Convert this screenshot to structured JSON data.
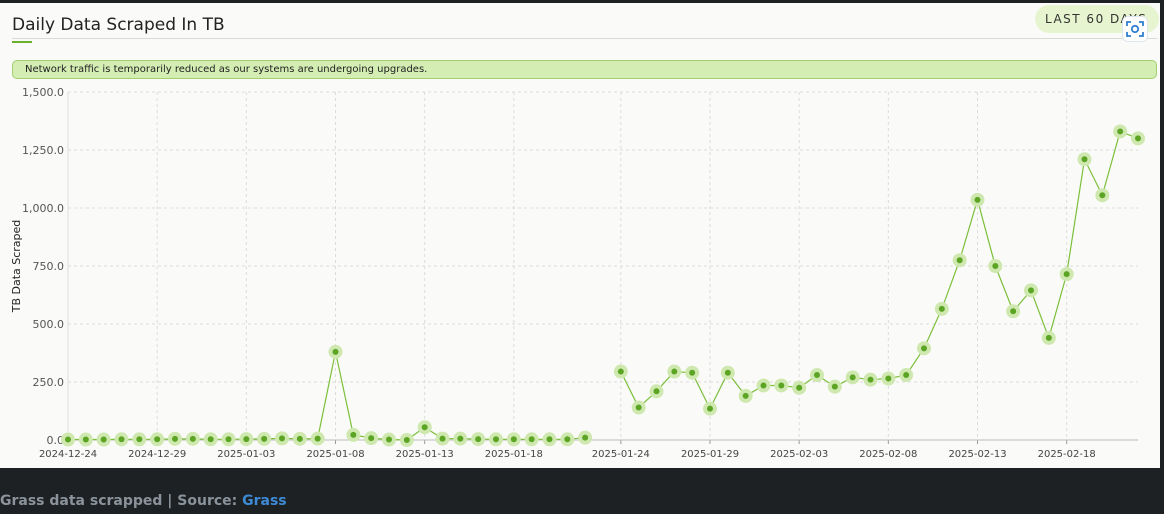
{
  "title": "Daily Data Scraped In TB",
  "range_button": "LAST 60 DAYS",
  "notice": "Network traffic is temporarily reduced as our systems are undergoing upgrades.",
  "caption": {
    "prefix": "Grass data scrapped | Source: ",
    "link": "Grass"
  },
  "colors": {
    "accent": "#6bb02d",
    "line": "#7cbf3a",
    "halo": "#cfe8b0",
    "notice_bg": "#d4edb3"
  },
  "icons": {
    "lens": "scan-lens-icon"
  },
  "chart_data": {
    "type": "line",
    "title": "Daily Data Scraped In TB",
    "xlabel": "",
    "ylabel": "TB Data Scraped",
    "ylim": [
      0,
      1500
    ],
    "yticks": [
      "1,500.0",
      "1,250.0",
      "1,000.0",
      "750.0",
      "500.0",
      "250.0",
      "0.0"
    ],
    "xticks": [
      "2024-12-24",
      "2024-12-29",
      "2025-01-03",
      "2025-01-08",
      "2025-01-13",
      "2025-01-18",
      "2025-01-24",
      "2025-01-29",
      "2025-02-03",
      "2025-02-08",
      "2025-02-13",
      "2025-02-18"
    ],
    "grid": true,
    "series": [
      {
        "x": [
          "2024-12-24",
          "2024-12-25",
          "2024-12-26",
          "2024-12-27",
          "2024-12-28",
          "2024-12-29",
          "2024-12-30",
          "2024-12-31",
          "2025-01-01",
          "2025-01-02",
          "2025-01-03",
          "2025-01-04",
          "2025-01-05",
          "2025-01-06",
          "2025-01-07",
          "2025-01-08",
          "2025-01-09",
          "2025-01-10",
          "2025-01-11",
          "2025-01-12",
          "2025-01-13",
          "2025-01-14",
          "2025-01-15",
          "2025-01-16",
          "2025-01-17",
          "2025-01-18",
          "2025-01-19",
          "2025-01-20",
          "2025-01-21",
          "2025-01-22",
          "2025-01-23",
          "2025-01-24",
          "2025-01-25",
          "2025-01-26",
          "2025-01-27",
          "2025-01-28",
          "2025-01-29",
          "2025-01-30",
          "2025-01-31",
          "2025-02-01",
          "2025-02-02",
          "2025-02-03",
          "2025-02-04",
          "2025-02-05",
          "2025-02-06",
          "2025-02-07",
          "2025-02-08",
          "2025-02-09",
          "2025-02-10",
          "2025-02-11",
          "2025-02-12",
          "2025-02-13",
          "2025-02-14",
          "2025-02-15",
          "2025-02-16",
          "2025-02-17",
          "2025-02-18",
          "2025-02-19",
          "2025-02-20",
          "2025-02-21",
          "2025-02-22"
        ],
        "values": [
          2,
          2,
          2,
          3,
          3,
          3,
          5,
          5,
          3,
          3,
          4,
          5,
          7,
          5,
          6,
          380,
          22,
          8,
          2,
          0,
          55,
          6,
          6,
          4,
          3,
          3,
          3,
          3,
          3,
          10,
          null,
          295,
          140,
          210,
          295,
          290,
          135,
          290,
          190,
          235,
          235,
          225,
          280,
          230,
          270,
          260,
          265,
          280,
          395,
          565,
          775,
          1035,
          750,
          555,
          645,
          440,
          715,
          1210,
          1055,
          1330,
          1300
        ]
      }
    ]
  }
}
